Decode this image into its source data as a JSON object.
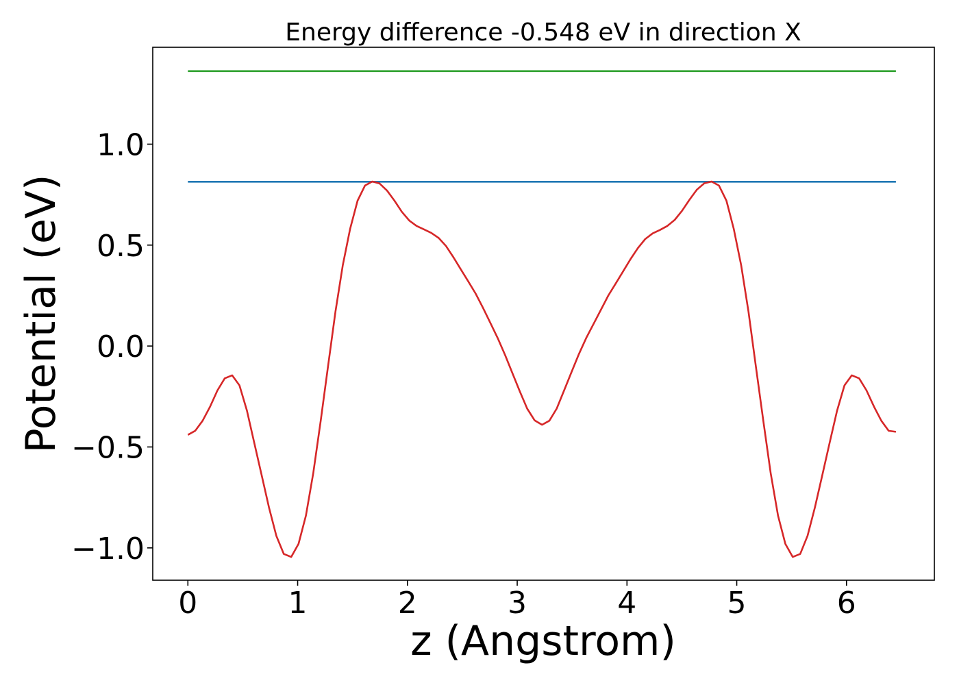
{
  "chart_data": {
    "type": "line",
    "title": "Energy difference -0.548 eV in direction X",
    "xlabel": "z (Angstrom)",
    "ylabel": "Potential (eV)",
    "xlim": [
      -0.32,
      6.8
    ],
    "ylim": [
      -1.16,
      1.48
    ],
    "xticks": [
      0,
      1,
      2,
      3,
      4,
      5,
      6
    ],
    "xtick_labels": [
      "0",
      "1",
      "2",
      "3",
      "4",
      "5",
      "6"
    ],
    "yticks": [
      1.0,
      0.5,
      0.0,
      -0.5,
      -1.0
    ],
    "ytick_labels": [
      "1.0",
      "0.5",
      "0.0",
      "−0.5",
      "−1.0"
    ],
    "grid": false,
    "series": [
      {
        "color": "#2ca02c",
        "x": [
          0.0,
          6.45
        ],
        "y": [
          1.362,
          1.362
        ]
      },
      {
        "color": "#1f77b4",
        "x": [
          0.0,
          6.45
        ],
        "y": [
          0.814,
          0.814
        ]
      },
      {
        "color": "#d62728",
        "x": [
          0.0,
          0.067,
          0.134,
          0.202,
          0.269,
          0.336,
          0.403,
          0.47,
          0.538,
          0.605,
          0.672,
          0.739,
          0.806,
          0.874,
          0.941,
          1.008,
          1.075,
          1.142,
          1.21,
          1.277,
          1.344,
          1.411,
          1.478,
          1.546,
          1.613,
          1.68,
          1.747,
          1.814,
          1.882,
          1.949,
          2.016,
          2.083,
          2.15,
          2.218,
          2.285,
          2.352,
          2.419,
          2.486,
          2.554,
          2.621,
          2.688,
          2.755,
          2.822,
          2.89,
          2.957,
          3.024,
          3.091,
          3.158,
          3.226,
          3.293,
          3.36,
          3.427,
          3.494,
          3.562,
          3.629,
          3.696,
          3.763,
          3.83,
          3.898,
          3.965,
          4.032,
          4.099,
          4.166,
          4.234,
          4.301,
          4.368,
          4.435,
          4.502,
          4.57,
          4.637,
          4.704,
          4.771,
          4.838,
          4.906,
          4.973,
          5.04,
          5.107,
          5.174,
          5.242,
          5.309,
          5.376,
          5.443,
          5.51,
          5.578,
          5.645,
          5.712,
          5.779,
          5.846,
          5.914,
          5.981,
          6.048,
          6.115,
          6.182,
          6.25,
          6.317,
          6.384,
          6.45
        ],
        "y": [
          -0.44,
          -0.42,
          -0.37,
          -0.3,
          -0.22,
          -0.16,
          -0.145,
          -0.195,
          -0.32,
          -0.48,
          -0.64,
          -0.8,
          -0.94,
          -1.03,
          -1.045,
          -0.98,
          -0.84,
          -0.63,
          -0.37,
          -0.1,
          0.17,
          0.4,
          0.58,
          0.72,
          0.795,
          0.815,
          0.805,
          0.77,
          0.72,
          0.665,
          0.622,
          0.595,
          0.578,
          0.56,
          0.535,
          0.495,
          0.44,
          0.38,
          0.32,
          0.26,
          0.19,
          0.115,
          0.04,
          -0.045,
          -0.135,
          -0.225,
          -0.31,
          -0.368,
          -0.39,
          -0.37,
          -0.31,
          -0.22,
          -0.13,
          -0.04,
          0.04,
          0.11,
          0.18,
          0.25,
          0.31,
          0.37,
          0.43,
          0.485,
          0.53,
          0.558,
          0.575,
          0.595,
          0.625,
          0.67,
          0.725,
          0.775,
          0.806,
          0.815,
          0.795,
          0.72,
          0.58,
          0.4,
          0.17,
          -0.1,
          -0.37,
          -0.63,
          -0.84,
          -0.98,
          -1.045,
          -1.03,
          -0.94,
          -0.8,
          -0.64,
          -0.48,
          -0.32,
          -0.195,
          -0.145,
          -0.16,
          -0.22,
          -0.3,
          -0.37,
          -0.42,
          -0.425
        ]
      }
    ]
  }
}
